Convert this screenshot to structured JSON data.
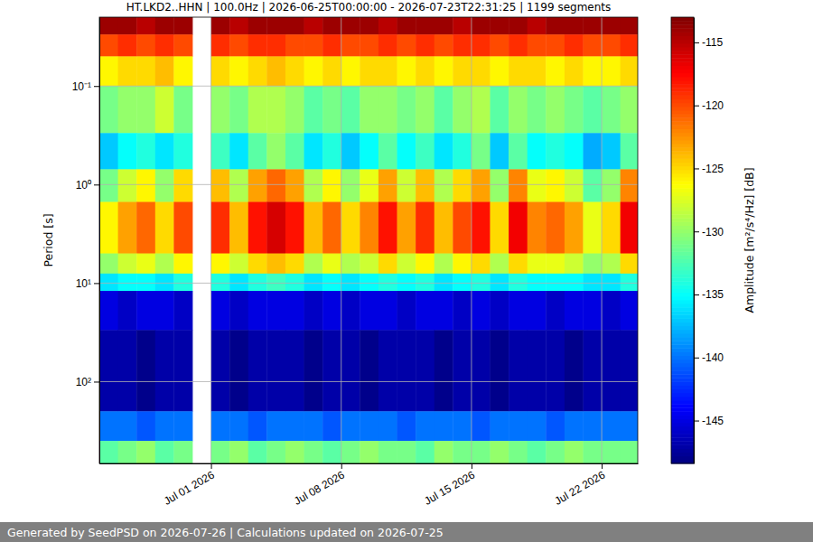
{
  "chart_data": {
    "type": "heatmap",
    "title": "HT.LKD2..HHN | 100.0Hz | 2026-06-25T00:00:00 - 2026-07-23T22:31:25 | 1199 segments",
    "y_label": "Period [s]",
    "footer": "Generated by SeedPSD on 2026-07-26 | Calculations updated on 2026-07-25",
    "log": "y",
    "grid": true,
    "xlim": [
      "2026-06-25T00:00:00",
      "2026-07-23T22:31:25"
    ],
    "xticks": [
      {
        "value": "2026-07-01T00:00:00",
        "label": "Jul 01 2026"
      },
      {
        "value": "2026-07-08T00:00:00",
        "label": "Jul 08 2026"
      },
      {
        "value": "2026-07-15T00:00:00",
        "label": "Jul 15 2026"
      },
      {
        "value": "2026-07-22T00:00:00",
        "label": "Jul 22 2026"
      }
    ],
    "ylim": [
      0.02,
      676
    ],
    "yticks": [
      {
        "value": 0.1,
        "label": "10⁻¹"
      },
      {
        "value": 1,
        "label": "10⁰"
      },
      {
        "value": 10,
        "label": "10¹"
      },
      {
        "value": 100,
        "label": "10²"
      }
    ],
    "x_edges": [
      "2026-06-25T00:00:00",
      "2026-06-26T00:00:00",
      "2026-06-27T00:00:00",
      "2026-06-28T00:00:00",
      "2026-06-29T00:00:00",
      "2026-06-30T00:00:00",
      "2026-07-01T00:00:00",
      "2026-07-02T00:00:00",
      "2026-07-03T00:00:00",
      "2026-07-04T00:00:00",
      "2026-07-05T00:00:00",
      "2026-07-06T00:00:00",
      "2026-07-07T00:00:00",
      "2026-07-08T00:00:00",
      "2026-07-09T00:00:00",
      "2026-07-10T00:00:00",
      "2026-07-11T00:00:00",
      "2026-07-12T00:00:00",
      "2026-07-13T00:00:00",
      "2026-07-14T00:00:00",
      "2026-07-15T00:00:00",
      "2026-07-16T00:00:00",
      "2026-07-17T00:00:00",
      "2026-07-18T00:00:00",
      "2026-07-19T00:00:00",
      "2026-07-20T00:00:00",
      "2026-07-21T00:00:00",
      "2026-07-22T00:00:00",
      "2026-07-23T00:00:00",
      "2026-07-23T22:31:25"
    ],
    "y_edges": [
      0.02,
      0.03,
      0.05,
      0.1,
      0.3,
      0.7,
      1.5,
      5,
      8,
      12,
      30,
      200,
      400,
      676
    ],
    "z": [
      [
        -114,
        -114,
        -115,
        -114,
        -114,
        null,
        -114,
        -115,
        -114,
        -114,
        -114,
        -115,
        -114,
        -114,
        -114,
        -115,
        -114,
        -114,
        -114,
        -115,
        -114,
        -114,
        -114,
        -115,
        -114,
        -114,
        -114,
        -114,
        -114
      ],
      [
        -120,
        -119,
        -120,
        -119,
        -120,
        null,
        -119,
        -120,
        -119,
        -119,
        -120,
        -120,
        -119,
        -120,
        -120,
        -119,
        -120,
        -119,
        -120,
        -119,
        -119,
        -120,
        -119,
        -120,
        -120,
        -119,
        -120,
        -120,
        -119
      ],
      [
        -126,
        -125,
        -125,
        -124,
        -126,
        null,
        -125,
        -126,
        -125,
        -124,
        -125,
        -126,
        -125,
        -126,
        -125,
        -125,
        -126,
        -125,
        -126,
        -125,
        -125,
        -126,
        -125,
        -125,
        -126,
        -125,
        -126,
        -126,
        -125
      ],
      [
        -131,
        -130,
        -130,
        -128,
        -131,
        null,
        -130,
        -131,
        -129,
        -129,
        -130,
        -132,
        -131,
        -132,
        -130,
        -130,
        -131,
        -130,
        -132,
        -130,
        -129,
        -132,
        -130,
        -131,
        -130,
        -131,
        -132,
        -131,
        -130
      ],
      [
        -137,
        -135,
        -134,
        -136,
        -134,
        null,
        -133,
        -136,
        -132,
        -130,
        -132,
        -136,
        -134,
        -137,
        -135,
        -132,
        -135,
        -133,
        -136,
        -134,
        -131,
        -137,
        -132,
        -135,
        -134,
        -135,
        -138,
        -137,
        -132
      ],
      [
        -131,
        -128,
        -126,
        -130,
        -125,
        null,
        -124,
        -129,
        -123,
        -121,
        -123,
        -129,
        -126,
        -130,
        -127,
        -123,
        -128,
        -124,
        -129,
        -125,
        -123,
        -130,
        -122,
        -127,
        -126,
        -128,
        -132,
        -130,
        -122
      ],
      [
        -126,
        -123,
        -121,
        -125,
        -120,
        null,
        -119,
        -124,
        -118,
        -116,
        -118,
        -124,
        -121,
        -125,
        -122,
        -118,
        -123,
        -119,
        -124,
        -120,
        -118,
        -125,
        -117,
        -122,
        -121,
        -123,
        -127,
        -125,
        -117
      ],
      [
        -130,
        -128,
        -127,
        -129,
        -126,
        null,
        -126,
        -128,
        -125,
        -124,
        -125,
        -129,
        -127,
        -129,
        -128,
        -125,
        -128,
        -126,
        -129,
        -126,
        -125,
        -129,
        -125,
        -127,
        -127,
        -128,
        -130,
        -129,
        -125
      ],
      [
        -136,
        -135,
        -135,
        -136,
        -134,
        null,
        -134,
        -136,
        -134,
        -133,
        -134,
        -136,
        -135,
        -136,
        -135,
        -134,
        -135,
        -134,
        -136,
        -135,
        -134,
        -136,
        -134,
        -135,
        -135,
        -135,
        -136,
        -136,
        -134
      ],
      [
        -145,
        -146,
        -145,
        -145,
        -146,
        null,
        -145,
        -146,
        -145,
        -145,
        -145,
        -146,
        -145,
        -146,
        -145,
        -145,
        -146,
        -145,
        -145,
        -146,
        -145,
        -146,
        -145,
        -145,
        -146,
        -145,
        -145,
        -146,
        -145
      ],
      [
        -147,
        -147,
        -148,
        -147,
        -147,
        null,
        -147,
        -148,
        -147,
        -147,
        -147,
        -148,
        -147,
        -147,
        -148,
        -147,
        -147,
        -147,
        -148,
        -147,
        -147,
        -148,
        -147,
        -147,
        -147,
        -148,
        -147,
        -147,
        -147
      ],
      [
        -140,
        -140,
        -141,
        -140,
        -140,
        null,
        -140,
        -140,
        -141,
        -140,
        -140,
        -140,
        -141,
        -140,
        -140,
        -140,
        -141,
        -140,
        -140,
        -140,
        -141,
        -140,
        -140,
        -140,
        -141,
        -140,
        -140,
        -140,
        -140
      ],
      [
        -132,
        -131,
        -130,
        -132,
        -131,
        null,
        -131,
        -130,
        -132,
        -131,
        -130,
        -131,
        -132,
        -131,
        -130,
        -131,
        -131,
        -132,
        -130,
        -131,
        -131,
        -130,
        -131,
        -132,
        -131,
        -130,
        -131,
        -131,
        -131
      ]
    ],
    "colorbar": {
      "label": "Amplitude [m²/s⁴/Hz] [dB]",
      "range": [
        -148.4,
        -113
      ],
      "ticks": [
        -145,
        -140,
        -135,
        -130,
        -125,
        -120,
        -115
      ]
    }
  }
}
